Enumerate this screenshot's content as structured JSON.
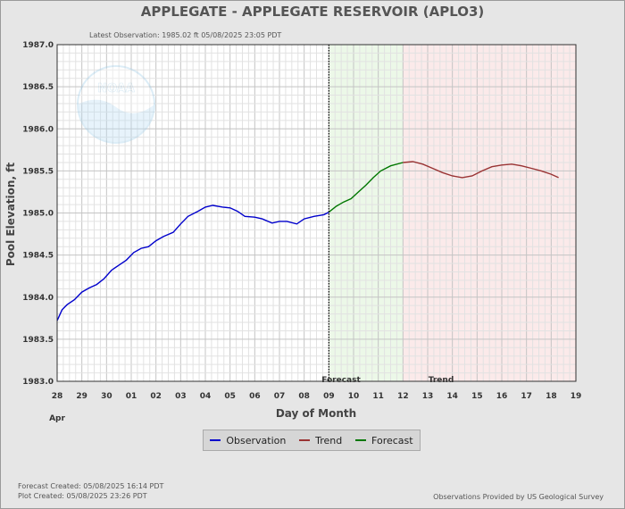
{
  "chart_data": {
    "type": "line",
    "title": "APPLEGATE - APPLEGATE RESERVOIR  (APLO3)",
    "latest_observation": "Latest Observation:  1985.02 ft 05/08/2025 23:05 PDT",
    "xlabel": "Day of Month",
    "ylabel": "Pool Elevation, ft",
    "month_label": "Apr",
    "ylim": [
      1983.0,
      1987.0
    ],
    "y_ticks": [
      "1983.0",
      "1983.5",
      "1984.0",
      "1984.5",
      "1985.0",
      "1985.5",
      "1986.0",
      "1986.5",
      "1987.0"
    ],
    "x_ticks": [
      "28",
      "29",
      "30",
      "01",
      "02",
      "03",
      "04",
      "05",
      "06",
      "07",
      "08",
      "09",
      "10",
      "11",
      "12",
      "13",
      "14",
      "15",
      "16",
      "17",
      "18",
      "19"
    ],
    "x_range_days": [
      0,
      21
    ],
    "forecast_start_day": 11.0,
    "trend_start_day": 14.0,
    "region_labels": {
      "forecast": "Forecast",
      "trend": "Trend"
    },
    "grid": true,
    "legend_position": "bottom-center",
    "series": [
      {
        "name": "Observation",
        "color": "#0000cc",
        "points": [
          [
            0.0,
            1983.72
          ],
          [
            0.2,
            1983.85
          ],
          [
            0.4,
            1983.91
          ],
          [
            0.7,
            1983.97
          ],
          [
            1.0,
            1984.06
          ],
          [
            1.3,
            1984.11
          ],
          [
            1.6,
            1984.15
          ],
          [
            1.9,
            1984.22
          ],
          [
            2.2,
            1984.32
          ],
          [
            2.5,
            1984.38
          ],
          [
            2.8,
            1984.44
          ],
          [
            3.1,
            1984.53
          ],
          [
            3.4,
            1984.58
          ],
          [
            3.7,
            1984.6
          ],
          [
            4.0,
            1984.67
          ],
          [
            4.3,
            1984.72
          ],
          [
            4.7,
            1984.77
          ],
          [
            5.0,
            1984.87
          ],
          [
            5.3,
            1984.96
          ],
          [
            5.7,
            1985.02
          ],
          [
            6.0,
            1985.07
          ],
          [
            6.3,
            1985.09
          ],
          [
            6.7,
            1985.07
          ],
          [
            7.0,
            1985.06
          ],
          [
            7.3,
            1985.02
          ],
          [
            7.6,
            1984.96
          ],
          [
            8.0,
            1984.95
          ],
          [
            8.3,
            1984.93
          ],
          [
            8.7,
            1984.88
          ],
          [
            9.0,
            1984.9
          ],
          [
            9.3,
            1984.9
          ],
          [
            9.7,
            1984.87
          ],
          [
            10.0,
            1984.93
          ],
          [
            10.4,
            1984.96
          ],
          [
            10.8,
            1984.98
          ],
          [
            11.0,
            1985.01
          ]
        ]
      },
      {
        "name": "Forecast",
        "color": "#007700",
        "points": [
          [
            11.0,
            1985.01
          ],
          [
            11.3,
            1985.08
          ],
          [
            11.6,
            1985.13
          ],
          [
            11.9,
            1985.17
          ],
          [
            12.2,
            1985.25
          ],
          [
            12.5,
            1985.33
          ],
          [
            12.8,
            1985.42
          ],
          [
            13.1,
            1985.5
          ],
          [
            13.5,
            1985.56
          ],
          [
            14.0,
            1985.6
          ]
        ]
      },
      {
        "name": "Trend",
        "color": "#993333",
        "points": [
          [
            14.0,
            1985.6
          ],
          [
            14.4,
            1985.61
          ],
          [
            14.8,
            1985.58
          ],
          [
            15.2,
            1985.53
          ],
          [
            15.6,
            1985.48
          ],
          [
            16.0,
            1985.44
          ],
          [
            16.4,
            1985.42
          ],
          [
            16.8,
            1985.44
          ],
          [
            17.2,
            1985.5
          ],
          [
            17.6,
            1985.55
          ],
          [
            18.0,
            1985.57
          ],
          [
            18.4,
            1985.58
          ],
          [
            18.8,
            1985.56
          ],
          [
            19.2,
            1985.53
          ],
          [
            19.6,
            1985.5
          ],
          [
            20.0,
            1985.46
          ],
          [
            20.3,
            1985.42
          ]
        ]
      }
    ]
  },
  "legend": {
    "items": [
      {
        "label": "Observation",
        "color": "#0000cc"
      },
      {
        "label": "Trend",
        "color": "#993333"
      },
      {
        "label": "Forecast",
        "color": "#007700"
      }
    ]
  },
  "footer": {
    "forecast_created": "Forecast Created: 05/08/2025 16:14 PDT",
    "plot_created": "Plot Created: 05/08/2025 23:26 PDT",
    "provider": "Observations Provided by US Geological Survey"
  },
  "logo": {
    "text": "NOAA"
  },
  "colors": {
    "forecast_region": "#ecf8e8",
    "trend_region": "#fbeaea",
    "plot_background": "#ffffff"
  }
}
